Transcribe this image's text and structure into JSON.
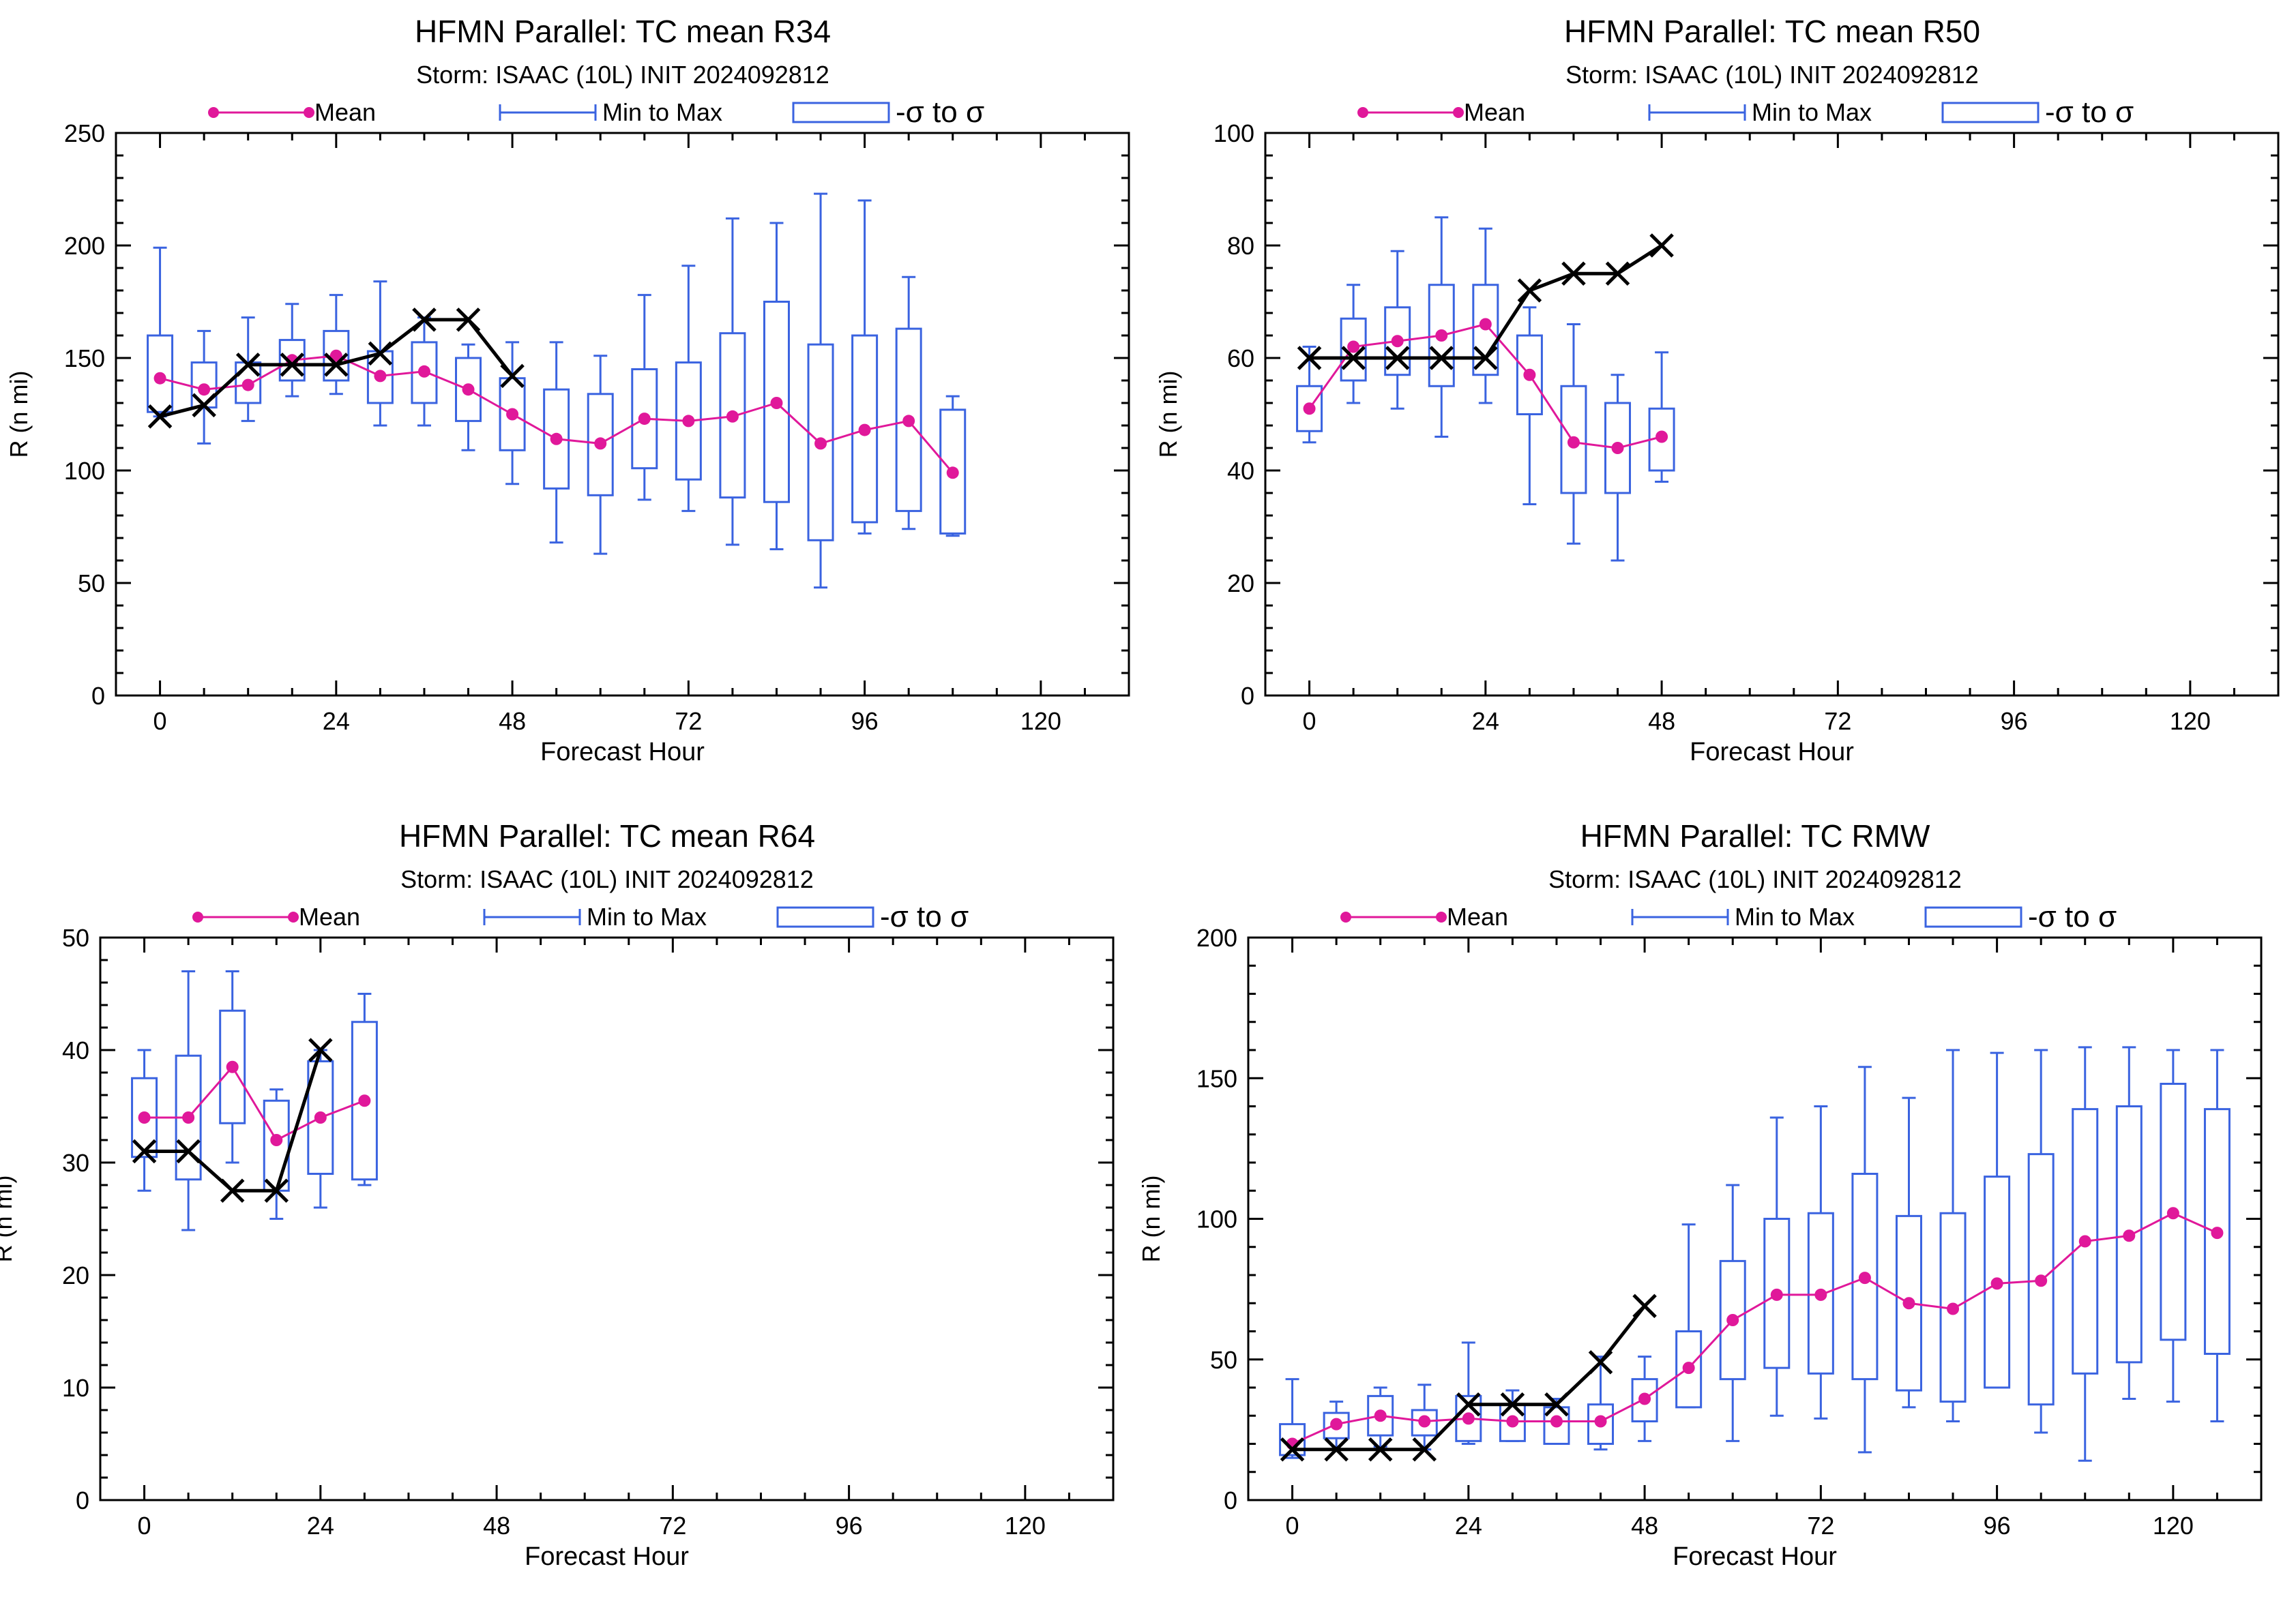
{
  "colors": {
    "mean": "#e0189a",
    "range": "#3a63e0",
    "observed": "#000000",
    "axis": "#000000"
  },
  "legend": {
    "mean_label": "Mean",
    "range_label": "Min to Max",
    "sigma_label": "-σ to σ"
  },
  "chart_data": [
    {
      "type": "box",
      "title": "HFMN Parallel: TC mean R34",
      "subtitle": "Storm: ISAAC (10L) INIT 2024092812",
      "xlabel": "Forecast Hour",
      "ylabel": "R (n mi)",
      "xlim": [
        -6,
        132
      ],
      "ylim": [
        0,
        250
      ],
      "xticks": [
        0,
        24,
        48,
        72,
        96,
        120
      ],
      "yticks": [
        0,
        50,
        100,
        150,
        200,
        250
      ],
      "x": [
        0,
        6,
        12,
        18,
        24,
        30,
        36,
        42,
        48,
        54,
        60,
        66,
        72,
        78,
        84,
        90,
        96,
        102,
        108
      ],
      "mean": [
        141,
        136,
        138,
        149,
        151,
        142,
        144,
        136,
        125,
        114,
        112,
        123,
        122,
        124,
        130,
        112,
        118,
        122,
        99
      ],
      "min": [
        124,
        112,
        122,
        133,
        134,
        120,
        120,
        109,
        94,
        68,
        63,
        87,
        82,
        67,
        65,
        48,
        72,
        74,
        71
      ],
      "max": [
        199,
        162,
        168,
        174,
        178,
        184,
        168,
        156,
        157,
        157,
        151,
        178,
        191,
        212,
        210,
        223,
        220,
        186,
        133
      ],
      "sigma_low": [
        126,
        128,
        130,
        140,
        140,
        130,
        130,
        122,
        109,
        92,
        89,
        101,
        96,
        88,
        86,
        69,
        77,
        82,
        72
      ],
      "sigma_high": [
        160,
        148,
        148,
        158,
        162,
        153,
        157,
        150,
        141,
        136,
        134,
        145,
        148,
        161,
        175,
        156,
        160,
        163,
        127
      ],
      "observed_x": [
        0,
        6,
        12,
        18,
        24,
        30,
        36,
        42,
        48
      ],
      "observed": [
        124,
        129,
        147,
        147,
        147,
        152,
        167,
        167,
        142
      ]
    },
    {
      "type": "box",
      "title": "HFMN Parallel: TC mean R50",
      "subtitle": "Storm: ISAAC (10L) INIT 2024092812",
      "xlabel": "Forecast Hour",
      "ylabel": "R (n mi)",
      "xlim": [
        -6,
        132
      ],
      "ylim": [
        0,
        100
      ],
      "xticks": [
        0,
        24,
        48,
        72,
        96,
        120
      ],
      "yticks": [
        0,
        20,
        40,
        60,
        80,
        100
      ],
      "x": [
        0,
        6,
        12,
        18,
        24,
        30,
        36,
        42,
        48
      ],
      "mean": [
        51,
        62,
        63,
        64,
        66,
        57,
        45,
        44,
        46
      ],
      "min": [
        45,
        52,
        51,
        46,
        52,
        34,
        27,
        24,
        38
      ],
      "max": [
        62,
        73,
        79,
        85,
        83,
        69,
        66,
        57,
        61
      ],
      "sigma_low": [
        47,
        56,
        57,
        55,
        57,
        50,
        36,
        36,
        40
      ],
      "sigma_high": [
        55,
        67,
        69,
        73,
        73,
        64,
        55,
        52,
        51
      ],
      "observed_x": [
        0,
        6,
        12,
        18,
        24,
        30,
        36,
        42,
        48
      ],
      "observed": [
        60,
        60,
        60,
        60,
        60,
        72,
        75,
        75,
        80
      ]
    },
    {
      "type": "box",
      "title": "HFMN Parallel: TC mean R64",
      "subtitle": "Storm: ISAAC (10L) INIT 2024092812",
      "xlabel": "Forecast Hour",
      "ylabel": "R (n mi)",
      "xlim": [
        -6,
        132
      ],
      "ylim": [
        0,
        50
      ],
      "xticks": [
        0,
        24,
        48,
        72,
        96,
        120
      ],
      "yticks": [
        0,
        10,
        20,
        30,
        40,
        50
      ],
      "x": [
        0,
        6,
        12,
        18,
        24,
        30
      ],
      "mean": [
        34,
        34,
        38.5,
        32,
        34,
        35.5
      ],
      "min": [
        27.5,
        24,
        30,
        25,
        26,
        28
      ],
      "max": [
        40,
        47,
        47,
        36.5,
        40,
        45
      ],
      "sigma_low": [
        30.5,
        28.5,
        33.5,
        27.5,
        29,
        28.5
      ],
      "sigma_high": [
        37.5,
        39.5,
        43.5,
        35.5,
        39,
        42.5
      ],
      "observed_x": [
        0,
        6,
        12,
        18,
        24
      ],
      "observed": [
        31,
        31,
        27.5,
        27.5,
        40
      ]
    },
    {
      "type": "box",
      "title": "HFMN Parallel: TC RMW",
      "subtitle": "Storm: ISAAC (10L) INIT 2024092812",
      "xlabel": "Forecast Hour",
      "ylabel": "R (n mi)",
      "xlim": [
        -6,
        132
      ],
      "ylim": [
        0,
        200
      ],
      "xticks": [
        0,
        24,
        48,
        72,
        96,
        120
      ],
      "yticks": [
        0,
        50,
        100,
        150,
        200
      ],
      "x": [
        0,
        6,
        12,
        18,
        24,
        30,
        36,
        42,
        48,
        54,
        60,
        66,
        72,
        78,
        84,
        90,
        96,
        102,
        108,
        114,
        120,
        126
      ],
      "mean": [
        20,
        27,
        30,
        28,
        29,
        28,
        28,
        28,
        36,
        47,
        64,
        73,
        73,
        79,
        70,
        68,
        77,
        78,
        92,
        94,
        102,
        95
      ],
      "min": [
        15,
        18,
        19,
        18,
        20,
        21,
        20,
        18,
        21,
        33,
        21,
        30,
        29,
        17,
        33,
        28,
        40,
        24,
        14,
        36,
        35,
        28
      ],
      "max": [
        43,
        35,
        40,
        41,
        56,
        39,
        36,
        51,
        51,
        98,
        112,
        136,
        140,
        154,
        143,
        160,
        159,
        160,
        161,
        161,
        160,
        160
      ],
      "sigma_low": [
        16,
        22,
        23,
        23,
        21,
        21,
        20,
        20,
        28,
        33,
        43,
        47,
        45,
        43,
        39,
        35,
        40,
        34,
        45,
        49,
        57,
        52
      ],
      "sigma_high": [
        27,
        31,
        37,
        32,
        37,
        34,
        33,
        34,
        43,
        60,
        85,
        100,
        102,
        116,
        101,
        102,
        115,
        123,
        139,
        140,
        148,
        139
      ],
      "observed_x": [
        0,
        6,
        12,
        18,
        24,
        30,
        36,
        42,
        48
      ],
      "observed": [
        18,
        18,
        18,
        18,
        34,
        34,
        34,
        49,
        69
      ]
    }
  ]
}
